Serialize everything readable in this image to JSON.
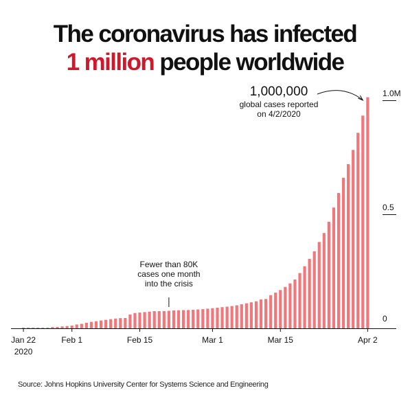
{
  "headline": {
    "line1": "The coronavirus has infected",
    "highlight": "1 million",
    "line2_rest": " people worldwide"
  },
  "source": "Source: Johns Hopkins University Center for Systems Science and Engineering",
  "colors": {
    "bar": "#f2777a",
    "highlight": "#d0182b",
    "text": "#111111"
  },
  "chart_data": {
    "type": "bar",
    "title": "The coronavirus has infected 1 million people worldwide",
    "xlabel": "",
    "ylabel": "",
    "ylim": [
      0,
      1.0
    ],
    "y_unit": "millions of cases",
    "grid": false,
    "yticks": [
      {
        "value": 0,
        "label": "0"
      },
      {
        "value": 0.5,
        "label": "0.5"
      },
      {
        "value": 1.0,
        "label": "1.0M"
      }
    ],
    "xticks": [
      {
        "date": "2020-01-22",
        "label": "Jan 22",
        "sublabel": "2020"
      },
      {
        "date": "2020-02-01",
        "label": "Feb 1"
      },
      {
        "date": "2020-02-15",
        "label": "Feb 15"
      },
      {
        "date": "2020-03-01",
        "label": "Mar 1"
      },
      {
        "date": "2020-03-15",
        "label": "Mar 15"
      },
      {
        "date": "2020-04-02",
        "label": "Apr 2"
      }
    ],
    "categories": [
      "2020-01-22",
      "2020-01-23",
      "2020-01-24",
      "2020-01-25",
      "2020-01-26",
      "2020-01-27",
      "2020-01-28",
      "2020-01-29",
      "2020-01-30",
      "2020-01-31",
      "2020-02-01",
      "2020-02-02",
      "2020-02-03",
      "2020-02-04",
      "2020-02-05",
      "2020-02-06",
      "2020-02-07",
      "2020-02-08",
      "2020-02-09",
      "2020-02-10",
      "2020-02-11",
      "2020-02-12",
      "2020-02-13",
      "2020-02-14",
      "2020-02-15",
      "2020-02-16",
      "2020-02-17",
      "2020-02-18",
      "2020-02-19",
      "2020-02-20",
      "2020-02-21",
      "2020-02-22",
      "2020-02-23",
      "2020-02-24",
      "2020-02-25",
      "2020-02-26",
      "2020-02-27",
      "2020-02-28",
      "2020-02-29",
      "2020-03-01",
      "2020-03-02",
      "2020-03-03",
      "2020-03-04",
      "2020-03-05",
      "2020-03-06",
      "2020-03-07",
      "2020-03-08",
      "2020-03-09",
      "2020-03-10",
      "2020-03-11",
      "2020-03-12",
      "2020-03-13",
      "2020-03-14",
      "2020-03-15",
      "2020-03-16",
      "2020-03-17",
      "2020-03-18",
      "2020-03-19",
      "2020-03-20",
      "2020-03-21",
      "2020-03-22",
      "2020-03-23",
      "2020-03-24",
      "2020-03-25",
      "2020-03-26",
      "2020-03-27",
      "2020-03-28",
      "2020-03-29",
      "2020-03-30",
      "2020-03-31",
      "2020-04-01",
      "2020-04-02"
    ],
    "values": [
      0.0006,
      0.0007,
      0.0009,
      0.0014,
      0.0021,
      0.0029,
      0.0055,
      0.0061,
      0.0082,
      0.0099,
      0.0119,
      0.0168,
      0.0196,
      0.0242,
      0.0283,
      0.0312,
      0.0343,
      0.0371,
      0.0402,
      0.0428,
      0.0447,
      0.0453,
      0.0604,
      0.067,
      0.0691,
      0.0711,
      0.0731,
      0.0752,
      0.0752,
      0.0757,
      0.0768,
      0.0787,
      0.0792,
      0.0799,
      0.0804,
      0.0813,
      0.0826,
      0.084,
      0.0862,
      0.0881,
      0.0903,
      0.0928,
      0.095,
      0.0976,
      0.101,
      0.1056,
      0.1096,
      0.114,
      0.1185,
      0.1264,
      0.1285,
      0.1456,
      0.1564,
      0.1679,
      0.1815,
      0.197,
      0.2142,
      0.2424,
      0.2722,
      0.3047,
      0.3374,
      0.3786,
      0.4179,
      0.4675,
      0.5294,
      0.5935,
      0.6605,
      0.7202,
      0.7822,
      0.8574,
      0.9328,
      1.0135
    ],
    "annotations": [
      {
        "date": "2020-04-02",
        "headline": "1,000,000",
        "lines": [
          "global cases reported",
          "on 4/2/2020"
        ]
      },
      {
        "date": "2020-02-21",
        "lines": [
          "Fewer than 80K",
          "cases one month",
          "into the crisis"
        ]
      }
    ]
  }
}
